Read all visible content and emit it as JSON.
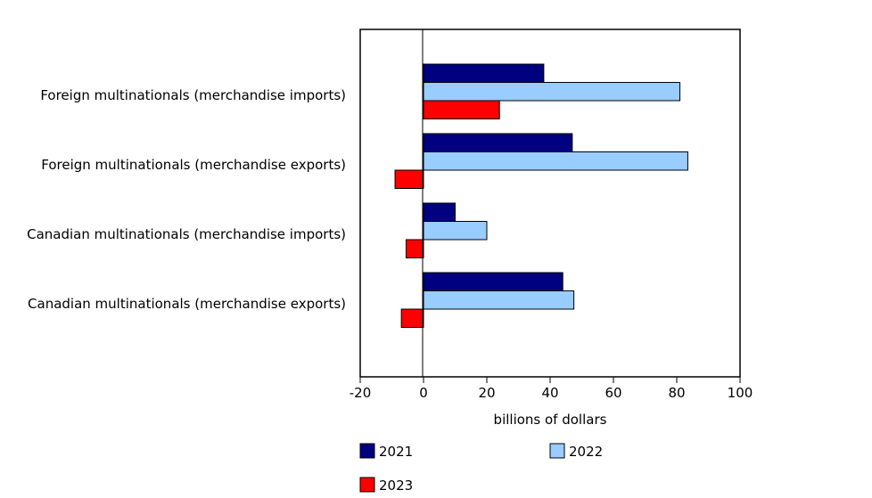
{
  "chart_data": {
    "type": "bar",
    "orientation": "horizontal",
    "title": "",
    "xlabel": "billions of dollars",
    "ylabel": "",
    "xlim": [
      -20,
      100
    ],
    "xticks": [
      "-20",
      "0",
      "20",
      "40",
      "60",
      "80",
      "100"
    ],
    "xtick_values": [
      -20,
      0,
      20,
      40,
      60,
      80,
      100
    ],
    "grid": false,
    "legend_position": "bottom",
    "categories": [
      "Foreign multinationals (merchandise imports)",
      "Foreign multinationals (merchandise exports)",
      "Canadian multinationals (merchandise imports)",
      "Canadian multinationals (merchandise exports)"
    ],
    "series": [
      {
        "name": "2021",
        "color": "#000080",
        "values": [
          38,
          47,
          10,
          44
        ]
      },
      {
        "name": "2022",
        "color": "#99ccff",
        "values": [
          81,
          83.5,
          20,
          47.5
        ]
      },
      {
        "name": "2023",
        "color": "#ff0000",
        "values": [
          24,
          -9,
          -5.5,
          -7
        ]
      }
    ]
  }
}
